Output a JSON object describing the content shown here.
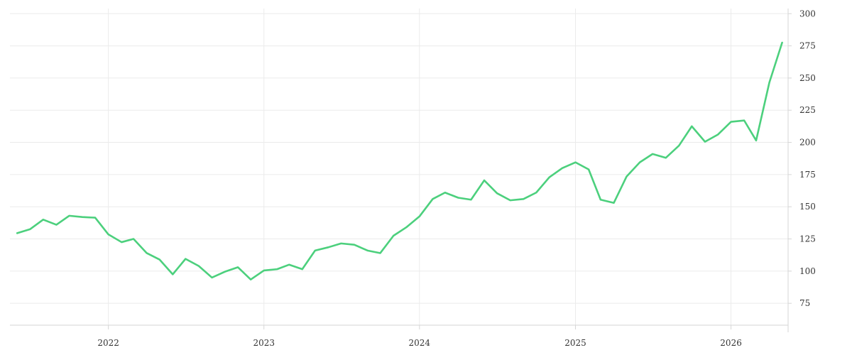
{
  "chart_data": {
    "type": "line",
    "title": "",
    "xlabel": "",
    "ylabel": "",
    "ylim": [
      58,
      304
    ],
    "xlim": [
      "2021-05-15",
      "2026-05-15"
    ],
    "y_ticks": [
      75,
      100,
      125,
      150,
      175,
      200,
      225,
      250,
      275,
      300
    ],
    "x_ticks": [
      {
        "date": "2022-01-01",
        "label": "2022"
      },
      {
        "date": "2023-01-01",
        "label": "2023"
      },
      {
        "date": "2024-01-01",
        "label": "2024"
      },
      {
        "date": "2025-01-01",
        "label": "2025"
      },
      {
        "date": "2026-01-01",
        "label": "2026"
      }
    ],
    "grid": true,
    "y_axis_position": "right",
    "series": [
      {
        "color": "#4cd07d",
        "points": [
          [
            "2021-06-01",
            129.5
          ],
          [
            "2021-07-01",
            132.5
          ],
          [
            "2021-08-01",
            140.0
          ],
          [
            "2021-09-01",
            136.0
          ],
          [
            "2021-10-01",
            143.0
          ],
          [
            "2021-11-01",
            142.0
          ],
          [
            "2021-12-01",
            141.5
          ],
          [
            "2022-01-01",
            128.5
          ],
          [
            "2022-02-01",
            122.5
          ],
          [
            "2022-03-01",
            125.0
          ],
          [
            "2022-04-01",
            114.0
          ],
          [
            "2022-05-01",
            109.0
          ],
          [
            "2022-06-01",
            97.5
          ],
          [
            "2022-07-01",
            109.5
          ],
          [
            "2022-08-01",
            104.0
          ],
          [
            "2022-09-01",
            95.0
          ],
          [
            "2022-10-01",
            99.5
          ],
          [
            "2022-11-01",
            103.0
          ],
          [
            "2022-12-01",
            93.5
          ],
          [
            "2023-01-01",
            100.5
          ],
          [
            "2023-02-01",
            101.5
          ],
          [
            "2023-03-01",
            105.0
          ],
          [
            "2023-04-01",
            101.5
          ],
          [
            "2023-05-01",
            116.0
          ],
          [
            "2023-06-01",
            118.5
          ],
          [
            "2023-07-01",
            121.5
          ],
          [
            "2023-08-01",
            120.5
          ],
          [
            "2023-09-01",
            116.0
          ],
          [
            "2023-10-01",
            114.0
          ],
          [
            "2023-11-01",
            127.5
          ],
          [
            "2023-12-01",
            134.0
          ],
          [
            "2024-01-01",
            142.5
          ],
          [
            "2024-02-01",
            156.0
          ],
          [
            "2024-03-01",
            161.0
          ],
          [
            "2024-04-01",
            157.0
          ],
          [
            "2024-05-01",
            155.5
          ],
          [
            "2024-06-01",
            170.5
          ],
          [
            "2024-07-01",
            160.5
          ],
          [
            "2024-08-01",
            155.0
          ],
          [
            "2024-09-01",
            156.0
          ],
          [
            "2024-10-01",
            161.0
          ],
          [
            "2024-11-01",
            173.0
          ],
          [
            "2024-12-01",
            180.0
          ],
          [
            "2025-01-01",
            184.5
          ],
          [
            "2025-02-01",
            179.0
          ],
          [
            "2025-03-01",
            155.5
          ],
          [
            "2025-04-01",
            153.0
          ],
          [
            "2025-05-01",
            173.5
          ],
          [
            "2025-06-01",
            184.5
          ],
          [
            "2025-07-01",
            191.0
          ],
          [
            "2025-08-01",
            188.0
          ],
          [
            "2025-09-01",
            197.5
          ],
          [
            "2025-10-01",
            212.5
          ],
          [
            "2025-11-01",
            200.5
          ],
          [
            "2025-12-01",
            206.0
          ],
          [
            "2026-01-01",
            216.0
          ],
          [
            "2026-02-01",
            217.0
          ],
          [
            "2026-03-01",
            201.5
          ],
          [
            "2026-04-01",
            246.5
          ],
          [
            "2026-05-01",
            277.5
          ]
        ]
      }
    ]
  }
}
